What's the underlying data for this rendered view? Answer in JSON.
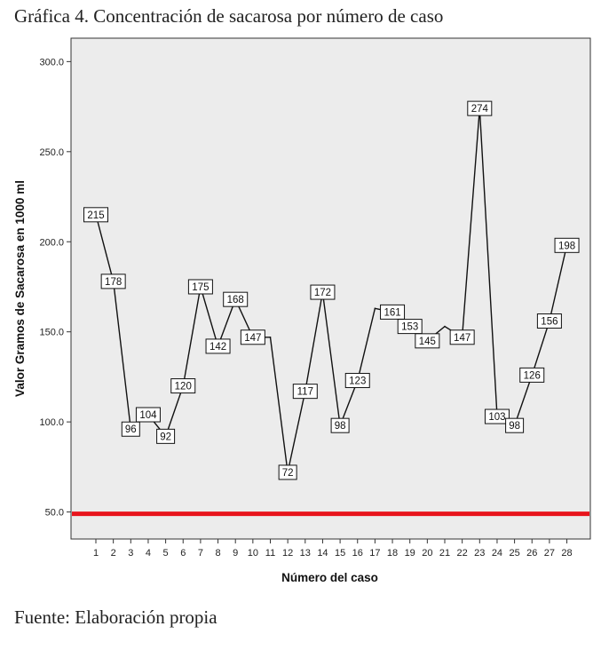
{
  "caption": {
    "title": "Gráfica 4. Concentración de sacarosa por número de caso",
    "source": "Fuente: Elaboración propia"
  },
  "chart_data": {
    "type": "line",
    "title": "",
    "xlabel": "Número del caso",
    "ylabel": "Valor Gramos de Sacarosa en 1000 ml",
    "x": [
      1,
      2,
      3,
      4,
      5,
      6,
      7,
      8,
      9,
      10,
      11,
      12,
      13,
      14,
      15,
      16,
      17,
      18,
      19,
      20,
      21,
      22,
      23,
      24,
      25,
      26,
      27,
      28
    ],
    "y": [
      215,
      178,
      96,
      104,
      92,
      120,
      175,
      142,
      168,
      147,
      147,
      72,
      117,
      172,
      98,
      123,
      163,
      161,
      153,
      145,
      153,
      147,
      274,
      103,
      98,
      126,
      156,
      198
    ],
    "data_labels": [
      "215",
      "178",
      "96",
      "104",
      "92",
      "120",
      "175",
      "142",
      "168",
      "147",
      "",
      "72",
      "117",
      "172",
      "98",
      "123",
      "",
      "161",
      "153",
      "145",
      "",
      "147",
      "274",
      "103",
      "98",
      "126",
      "156",
      "198"
    ],
    "ylim": [
      35,
      313
    ],
    "yticks": [
      50,
      100,
      150,
      200,
      250,
      300
    ],
    "ytick_labels": [
      "50.0",
      "100.0",
      "150.0",
      "200.0",
      "250.0",
      "300.0"
    ],
    "reference_line": {
      "y": 49,
      "color": "#e8141c"
    },
    "colors": {
      "plot_background": "#ececec",
      "line": "#111111",
      "label_box": "#ffffff"
    },
    "grid": false,
    "legend": "none"
  }
}
